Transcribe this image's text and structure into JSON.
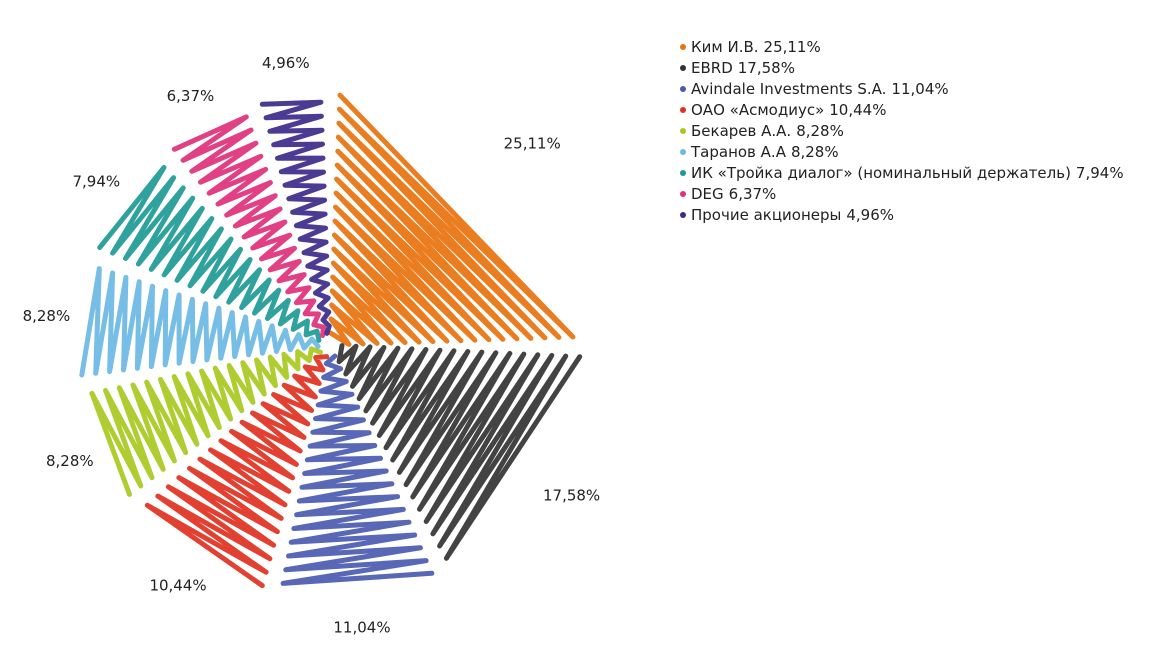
{
  "chart_data": {
    "type": "pie",
    "categories": [
      "Ким И.В.",
      "EBRD",
      "Avindale Investments S.A.",
      "ОАО «Асмодиус»",
      "Бекарев А.А.",
      "Таранов А.А",
      "ИК «Тройка диалог» (номинальный держатель)",
      "DEG",
      "Прочие акционеры"
    ],
    "values": [
      25.11,
      17.58,
      11.04,
      10.44,
      8.28,
      8.28,
      7.94,
      6.37,
      4.96
    ],
    "value_labels": [
      "25,11%",
      "17,58%",
      "11,04%",
      "10,44%",
      "8,28%",
      "8,28%",
      "7,94%",
      "6,37%",
      "4,96%"
    ],
    "colors": [
      "#e8720c",
      "#333333",
      "#4a5ab0",
      "#e0301e",
      "#a8c81e",
      "#6ab8e4",
      "#1e9a96",
      "#e0307a",
      "#3c2a8a"
    ]
  }
}
